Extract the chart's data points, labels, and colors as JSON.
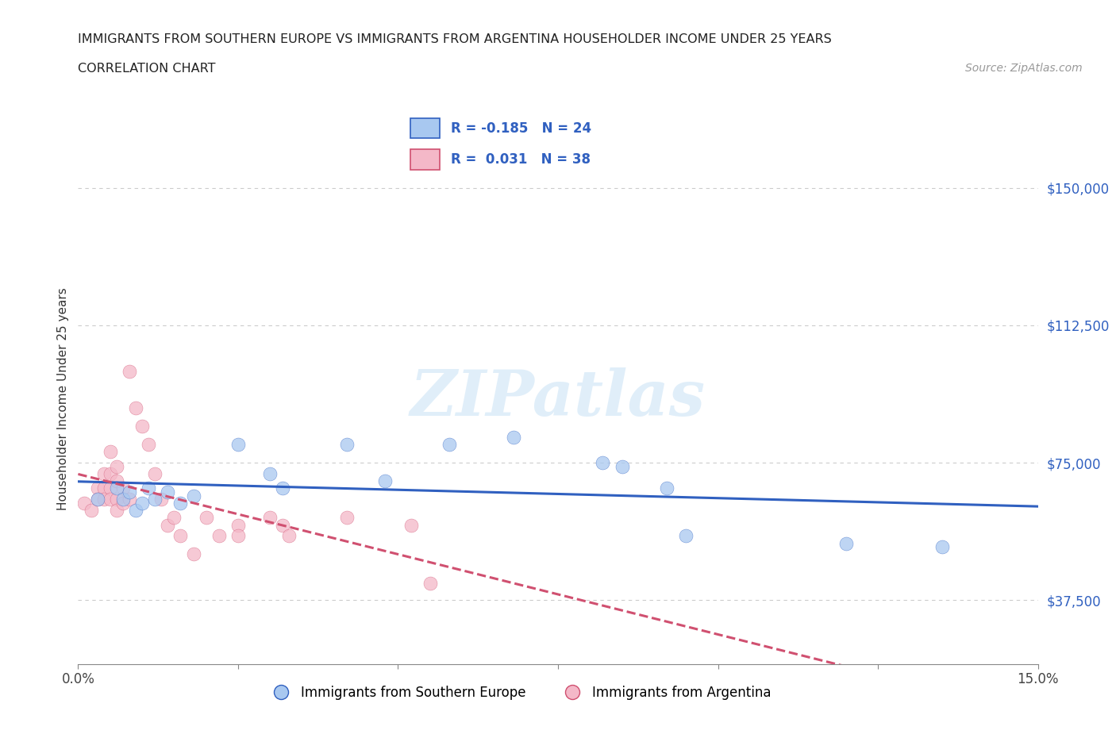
{
  "title_line1": "IMMIGRANTS FROM SOUTHERN EUROPE VS IMMIGRANTS FROM ARGENTINA HOUSEHOLDER INCOME UNDER 25 YEARS",
  "title_line2": "CORRELATION CHART",
  "source_text": "Source: ZipAtlas.com",
  "ylabel": "Householder Income Under 25 years",
  "xlim": [
    0.0,
    0.15
  ],
  "ylim": [
    20000,
    165000
  ],
  "yticks": [
    37500,
    75000,
    112500,
    150000
  ],
  "ytick_labels": [
    "$37,500",
    "$75,000",
    "$112,500",
    "$150,000"
  ],
  "xticks": [
    0.0,
    0.025,
    0.05,
    0.075,
    0.1,
    0.125,
    0.15
  ],
  "xtick_labels": [
    "0.0%",
    "",
    "",
    "",
    "",
    "",
    "15.0%"
  ],
  "watermark": "ZIPatlas",
  "blue_color": "#a8c8f0",
  "pink_color": "#f4b8c8",
  "trendline_blue_color": "#3060c0",
  "trendline_pink_color": "#d05070",
  "grid_color": "#cccccc",
  "scatter_blue": [
    [
      0.003,
      65000
    ],
    [
      0.006,
      68000
    ],
    [
      0.007,
      65000
    ],
    [
      0.008,
      67000
    ],
    [
      0.009,
      62000
    ],
    [
      0.01,
      64000
    ],
    [
      0.011,
      68000
    ],
    [
      0.012,
      65000
    ],
    [
      0.014,
      67000
    ],
    [
      0.016,
      64000
    ],
    [
      0.018,
      66000
    ],
    [
      0.025,
      80000
    ],
    [
      0.03,
      72000
    ],
    [
      0.032,
      68000
    ],
    [
      0.042,
      80000
    ],
    [
      0.048,
      70000
    ],
    [
      0.058,
      80000
    ],
    [
      0.068,
      82000
    ],
    [
      0.082,
      75000
    ],
    [
      0.085,
      74000
    ],
    [
      0.092,
      68000
    ],
    [
      0.095,
      55000
    ],
    [
      0.12,
      53000
    ],
    [
      0.135,
      52000
    ]
  ],
  "scatter_pink": [
    [
      0.001,
      64000
    ],
    [
      0.002,
      62000
    ],
    [
      0.003,
      68000
    ],
    [
      0.003,
      65000
    ],
    [
      0.004,
      72000
    ],
    [
      0.004,
      68000
    ],
    [
      0.004,
      65000
    ],
    [
      0.005,
      78000
    ],
    [
      0.005,
      72000
    ],
    [
      0.005,
      68000
    ],
    [
      0.005,
      65000
    ],
    [
      0.006,
      74000
    ],
    [
      0.006,
      70000
    ],
    [
      0.006,
      65000
    ],
    [
      0.006,
      62000
    ],
    [
      0.007,
      68000
    ],
    [
      0.007,
      64000
    ],
    [
      0.008,
      65000
    ],
    [
      0.008,
      100000
    ],
    [
      0.009,
      90000
    ],
    [
      0.01,
      85000
    ],
    [
      0.011,
      80000
    ],
    [
      0.012,
      72000
    ],
    [
      0.013,
      65000
    ],
    [
      0.014,
      58000
    ],
    [
      0.015,
      60000
    ],
    [
      0.016,
      55000
    ],
    [
      0.018,
      50000
    ],
    [
      0.02,
      60000
    ],
    [
      0.022,
      55000
    ],
    [
      0.025,
      58000
    ],
    [
      0.025,
      55000
    ],
    [
      0.03,
      60000
    ],
    [
      0.032,
      58000
    ],
    [
      0.033,
      55000
    ],
    [
      0.042,
      60000
    ],
    [
      0.052,
      58000
    ],
    [
      0.055,
      42000
    ]
  ]
}
